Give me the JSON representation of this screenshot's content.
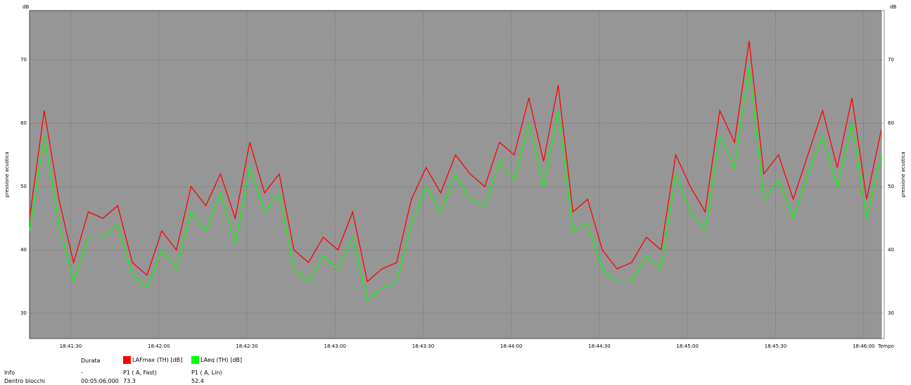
{
  "chart_data": {
    "type": "line",
    "y_label": "pressione acustica",
    "y_unit": "dB",
    "x_label": "Tempo",
    "x": [
      "18:41:16",
      "18:41:21",
      "18:41:26",
      "18:41:31",
      "18:41:36",
      "18:41:41",
      "18:41:46",
      "18:41:51",
      "18:41:56",
      "18:42:01",
      "18:42:06",
      "18:42:11",
      "18:42:16",
      "18:42:21",
      "18:42:26",
      "18:42:31",
      "18:42:36",
      "18:42:41",
      "18:42:46",
      "18:42:51",
      "18:42:56",
      "18:43:01",
      "18:43:06",
      "18:43:11",
      "18:43:16",
      "18:43:21",
      "18:43:26",
      "18:43:31",
      "18:43:36",
      "18:43:41",
      "18:43:46",
      "18:43:51",
      "18:43:56",
      "18:44:01",
      "18:44:06",
      "18:44:11",
      "18:44:16",
      "18:44:21",
      "18:44:26",
      "18:44:31",
      "18:44:36",
      "18:44:41",
      "18:44:46",
      "18:44:51",
      "18:44:56",
      "18:45:01",
      "18:45:06",
      "18:45:11",
      "18:45:16",
      "18:45:21",
      "18:45:26",
      "18:45:31",
      "18:45:36",
      "18:45:41",
      "18:45:46",
      "18:45:51",
      "18:45:56",
      "18:46:01",
      "18:46:06"
    ],
    "series": [
      {
        "name": "LAFmax (TH) [dB]",
        "color": "#ff0000",
        "info": "P1 ( A, Fast)",
        "inside": "73.3",
        "values": [
          45,
          62,
          48,
          38,
          46,
          45,
          47,
          38,
          36,
          43,
          40,
          50,
          47,
          52,
          45,
          57,
          49,
          52,
          40,
          38,
          42,
          40,
          46,
          35,
          37,
          38,
          48,
          53,
          49,
          55,
          52,
          50,
          57,
          55,
          64,
          54,
          66,
          46,
          48,
          40,
          37,
          38,
          42,
          40,
          55,
          50,
          46,
          62,
          57,
          73,
          52,
          55,
          48,
          55,
          62,
          53,
          64,
          48,
          59
        ]
      },
      {
        "name": "LAeq (TH) [dB]",
        "color": "#00ff00",
        "info": "P1 ( A, Lin)",
        "inside": "52.4",
        "values": [
          43,
          58,
          44,
          35,
          42,
          42,
          44,
          36,
          34,
          40,
          37,
          46,
          43,
          49,
          41,
          53,
          46,
          49,
          37,
          35,
          39,
          37,
          42,
          32,
          34,
          35,
          44,
          50,
          46,
          52,
          48,
          47,
          54,
          51,
          60,
          50,
          62,
          43,
          44,
          37,
          35,
          35,
          39,
          37,
          52,
          46,
          43,
          58,
          53,
          69,
          48,
          51,
          45,
          52,
          58,
          50,
          60,
          45,
          55
        ]
      }
    ],
    "ylim": [
      26,
      77.8
    ],
    "yticks": [
      30,
      40,
      50,
      60,
      70
    ],
    "xlim": [
      "18:41:16",
      "18:46:07"
    ],
    "xticks": [
      "18:41:30",
      "18:42:00",
      "18:42:30",
      "18:43:00",
      "18:43:30",
      "18:44:00",
      "18:44:30",
      "18:45:00",
      "18:45:30",
      "18:46:00"
    ],
    "grid": true,
    "table": {
      "col_header": "Durata",
      "rows": [
        "Info",
        "Dentro blocchi"
      ],
      "durata": [
        "-",
        "00:05:06.000"
      ]
    }
  }
}
